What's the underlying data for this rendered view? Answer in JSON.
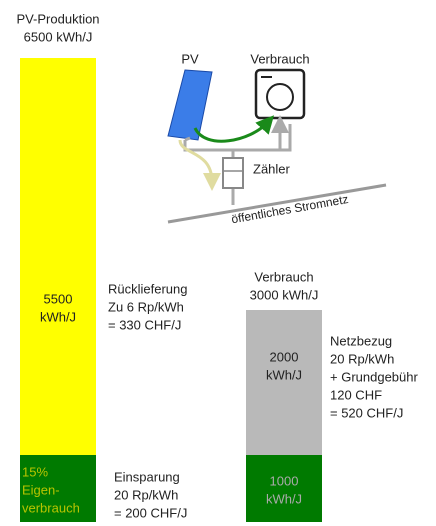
{
  "pv_production": {
    "title": "PV-Produktion",
    "amount": "6500 kWh/J"
  },
  "feed_in_bar": [
    "5500",
    "kWh/J"
  ],
  "self_use_bar": [
    "15%",
    "Eigen-",
    "verbrauch"
  ],
  "feed_in": [
    "Rücklieferung",
    "Zu 6 Rp/kWh",
    "= 330 CHF/J"
  ],
  "savings": [
    "Einsparung",
    "20 Rp/kWh",
    "= 200 CHF/J"
  ],
  "consumption": {
    "title": "Verbrauch",
    "amount": "3000 kWh/J"
  },
  "grid_bar": [
    "2000",
    "kWh/J"
  ],
  "self_bar": [
    "1000",
    "kWh/J"
  ],
  "grid_purchase": [
    "Netzbezug",
    "20 Rp/kWh",
    "+ Grundgebühr",
    "120 CHF",
    "= 520 CHF/J"
  ],
  "diagram": {
    "pv": "PV",
    "consumer": "Verbrauch",
    "meter": "Zähler",
    "grid": "öffentliches Stromnetz"
  }
}
